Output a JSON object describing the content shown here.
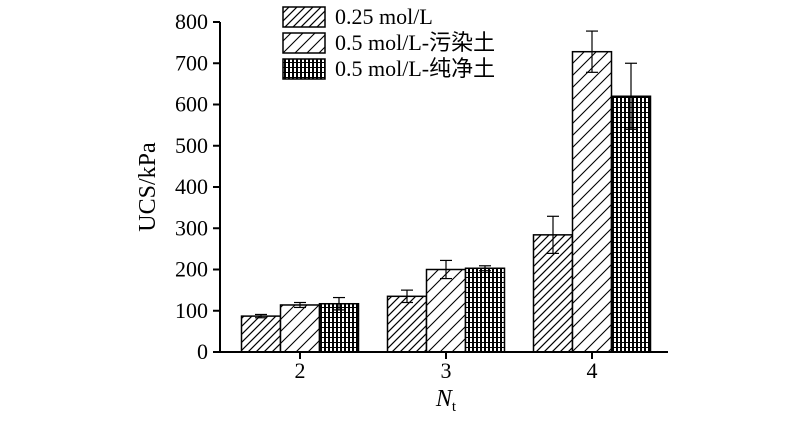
{
  "chart_data": {
    "type": "bar",
    "categories": [
      "2",
      "3",
      "4"
    ],
    "series": [
      {
        "name": "0.25 mol/L",
        "values": [
          87,
          135,
          284
        ],
        "errors": [
          4,
          15,
          45
        ],
        "pattern": "diag-wide"
      },
      {
        "name": "0.5 mol/L-污染土",
        "values": [
          114,
          200,
          728
        ],
        "errors": [
          6,
          22,
          50
        ],
        "pattern": "diag-fine"
      },
      {
        "name": "0.5 mol/L-纯净土",
        "values": [
          117,
          203,
          620
        ],
        "errors": [
          15,
          6,
          80
        ],
        "pattern": "grid"
      }
    ],
    "title": "",
    "ylabel": "UCS/kPa",
    "xlabel": {
      "main": "N",
      "sub": "t"
    },
    "ylim": [
      0,
      800
    ],
    "yticks": [
      0,
      100,
      200,
      300,
      400,
      500,
      600,
      700,
      800
    ],
    "grid": false,
    "legend_position": "top-left"
  }
}
